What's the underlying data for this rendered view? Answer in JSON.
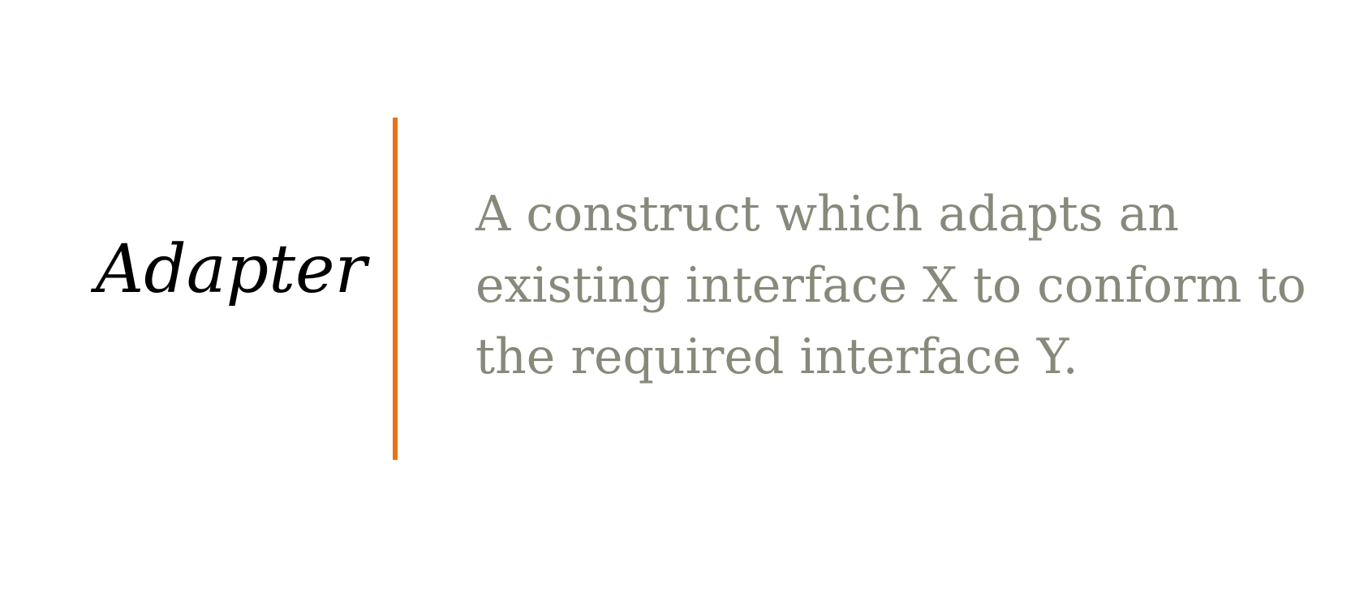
{
  "term": "Adapter",
  "definition": {
    "lines": [
      "A construct which adapts an",
      "existing interface X to conform to",
      "the required interface Y."
    ]
  },
  "colors": {
    "divider": "#e8731a",
    "definition_text": "#868a7a",
    "term_text": "#000000",
    "background": "#ffffff"
  }
}
